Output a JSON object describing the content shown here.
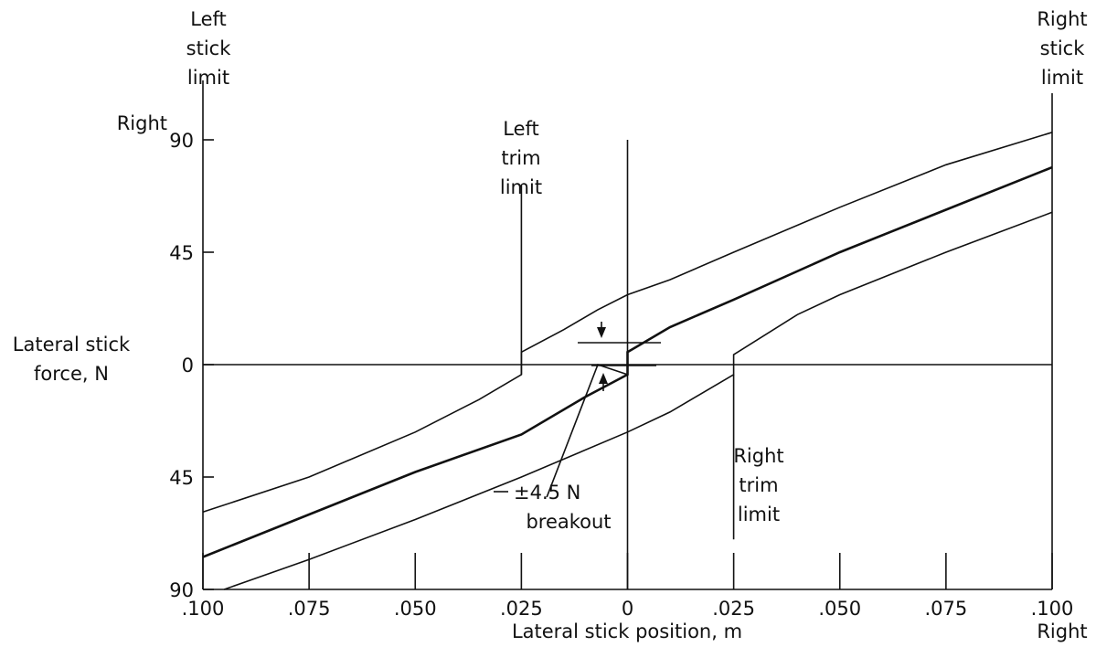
{
  "chart_data": {
    "type": "line",
    "xlabel": "Lateral stick position, m",
    "ylabel_lines": [
      "Lateral stick",
      "force, N"
    ],
    "x_ticks": [
      {
        "value": -0.1,
        "label": ".100"
      },
      {
        "value": -0.075,
        "label": ".075"
      },
      {
        "value": -0.05,
        "label": ".050"
      },
      {
        "value": -0.025,
        "label": ".025"
      },
      {
        "value": 0,
        "label": "0"
      },
      {
        "value": 0.025,
        "label": ".025"
      },
      {
        "value": 0.05,
        "label": ".050"
      },
      {
        "value": 0.075,
        "label": ".075"
      },
      {
        "value": 0.1,
        "label": ".100"
      }
    ],
    "y_ticks": [
      {
        "value": 90,
        "label": "90"
      },
      {
        "value": 45,
        "label": "45"
      },
      {
        "value": 0,
        "label": "0"
      },
      {
        "value": -45,
        "label": "45"
      },
      {
        "value": -90,
        "label": "90"
      }
    ],
    "y_top_direction": "Right",
    "x_right_direction": "Right",
    "xlim": [
      -0.1,
      0.1
    ],
    "ylim": [
      -90,
      90
    ],
    "grid": false,
    "series": [
      {
        "x": [
          -0.1,
          -0.075,
          -0.05,
          -0.035,
          -0.025,
          -0.025,
          -0.015,
          -0.007,
          0,
          0.01,
          0.025,
          0.05,
          0.075,
          0.1
        ],
        "y": [
          -59,
          -45,
          -27,
          -14,
          -4,
          5,
          14,
          22,
          28,
          34,
          45,
          63,
          80,
          93
        ]
      },
      {
        "x": [
          -0.1,
          -0.075,
          -0.05,
          -0.025,
          -0.01,
          0,
          0,
          0.01,
          0.025,
          0.05,
          0.075,
          0.1
        ],
        "y": [
          -77,
          -60,
          -43,
          -28,
          -13,
          -4,
          5,
          15,
          26,
          45,
          62,
          79
        ]
      },
      {
        "x": [
          -0.095,
          -0.075,
          -0.05,
          -0.025,
          0,
          0.01,
          0.025,
          0.025,
          0.04,
          0.05,
          0.075,
          0.1
        ],
        "y": [
          -90,
          -78,
          -62,
          -45,
          -27,
          -19,
          -4,
          4,
          20,
          28,
          45,
          61
        ]
      },
      {
        "x": [
          -0.1,
          0.1
        ],
        "y": [
          0,
          0
        ]
      },
      {
        "x": [
          -0.025,
          -0.025
        ],
        "y": [
          -4,
          72
        ]
      },
      {
        "x": [
          0.025,
          0.025
        ],
        "y": [
          -4,
          -70
        ]
      },
      {
        "x": [
          0,
          0
        ],
        "y": [
          -90,
          90
        ]
      },
      {
        "x": [
          -0.019,
          -0.007,
          0
        ],
        "y": [
          -53,
          0,
          -4
        ]
      }
    ],
    "annotations": {
      "left_stick_limit": [
        "Left",
        "stick",
        "limit"
      ],
      "right_stick_limit": [
        "Right",
        "stick",
        "limit"
      ],
      "left_trim_limit": [
        "Left",
        "trim",
        "limit"
      ],
      "right_trim_limit": [
        "Right",
        "trim",
        "limit"
      ],
      "breakout_line1": "±4.5 N",
      "breakout_line2": "breakout"
    }
  }
}
